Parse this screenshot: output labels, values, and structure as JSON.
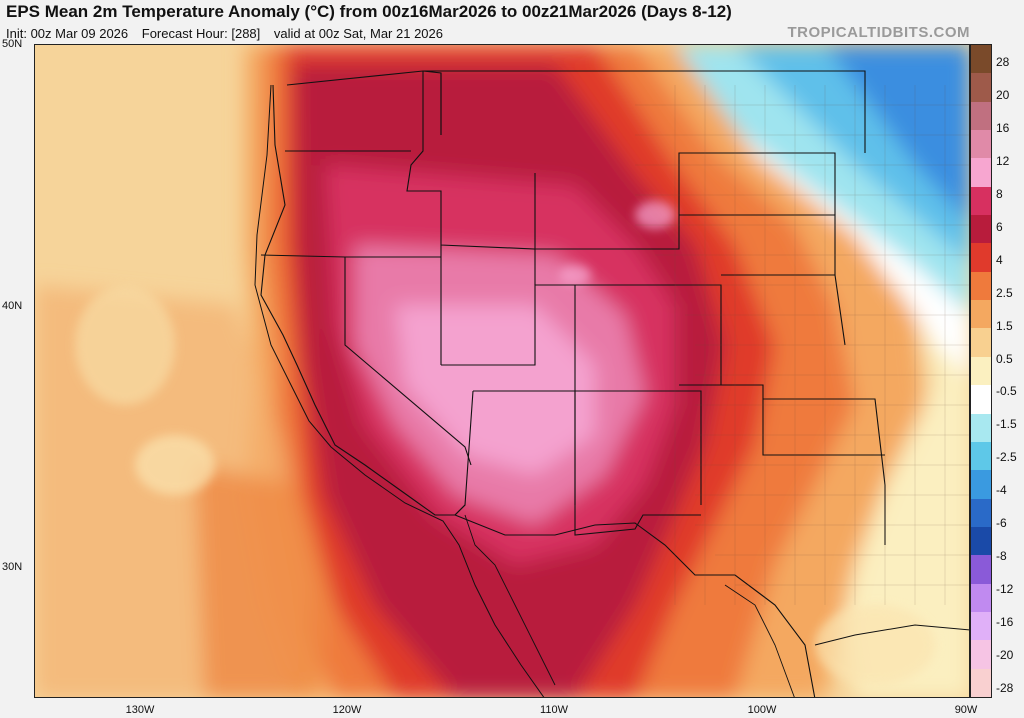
{
  "header": {
    "title": "EPS Mean 2m Temperature Anomaly (°C) from 00z16Mar2026 to 00z21Mar2026 (Days 8-12)",
    "init": "Init: 00z Mar 09 2026",
    "forecast_hour": "Forecast Hour: [288]",
    "valid": "valid at 00z Sat, Mar 21 2026",
    "brand": "TROPICALTIDBITS.COM"
  },
  "map": {
    "region": "Western and Central United States, northern Mexico",
    "lat_labels": [
      "50N",
      "40N",
      "30N"
    ],
    "lon_labels": [
      "130W",
      "120W",
      "110W",
      "100W",
      "90W"
    ]
  },
  "colorbar": {
    "labels": [
      "28",
      "20",
      "16",
      "12",
      "8",
      "6",
      "4",
      "2.5",
      "1.5",
      "0.5",
      "-0.5",
      "-1.5",
      "-2.5",
      "-4",
      "-6",
      "-8",
      "-12",
      "-16",
      "-20",
      "-28"
    ],
    "colors": [
      "#7a4a2a",
      "#9e5a4a",
      "#c07080",
      "#e08aa8",
      "#f7a6d0",
      "#d73060",
      "#b81c3c",
      "#e03a2c",
      "#ef7a3c",
      "#f4a860",
      "#f8d090",
      "#fbf0c0",
      "#ffffff",
      "#a8e8f0",
      "#5ec8e8",
      "#3a9ae0",
      "#2a6ac8",
      "#1a4aa8",
      "#8a5ad8",
      "#c08af0",
      "#e0b0f8",
      "#f6c4e4",
      "#f9d0d0"
    ]
  }
}
